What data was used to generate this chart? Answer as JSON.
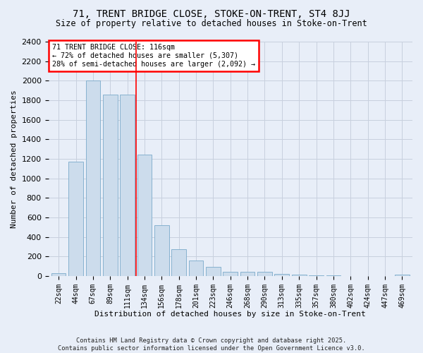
{
  "title1": "71, TRENT BRIDGE CLOSE, STOKE-ON-TRENT, ST4 8JJ",
  "title2": "Size of property relative to detached houses in Stoke-on-Trent",
  "xlabel": "Distribution of detached houses by size in Stoke-on-Trent",
  "ylabel": "Number of detached properties",
  "bar_labels": [
    "22sqm",
    "44sqm",
    "67sqm",
    "89sqm",
    "111sqm",
    "134sqm",
    "156sqm",
    "178sqm",
    "201sqm",
    "223sqm",
    "246sqm",
    "268sqm",
    "290sqm",
    "313sqm",
    "335sqm",
    "357sqm",
    "380sqm",
    "402sqm",
    "424sqm",
    "447sqm",
    "469sqm"
  ],
  "bar_values": [
    28,
    1170,
    2000,
    1860,
    1860,
    1240,
    520,
    275,
    155,
    90,
    45,
    40,
    40,
    20,
    10,
    5,
    5,
    2,
    2,
    2,
    15
  ],
  "bar_color": "#ccdcec",
  "bar_edge_color": "#7aaaca",
  "vline_x": 4.5,
  "vline_color": "red",
  "annotation_text": "71 TRENT BRIDGE CLOSE: 116sqm\n← 72% of detached houses are smaller (5,307)\n28% of semi-detached houses are larger (2,092) →",
  "annotation_box_color": "white",
  "annotation_box_edge": "red",
  "bg_color": "#e8eef8",
  "grid_color": "#c8d0de",
  "footnote": "Contains HM Land Registry data © Crown copyright and database right 2025.\nContains public sector information licensed under the Open Government Licence v3.0.",
  "ylim": [
    0,
    2400
  ],
  "yticks": [
    0,
    200,
    400,
    600,
    800,
    1000,
    1200,
    1400,
    1600,
    1800,
    2000,
    2200,
    2400
  ]
}
